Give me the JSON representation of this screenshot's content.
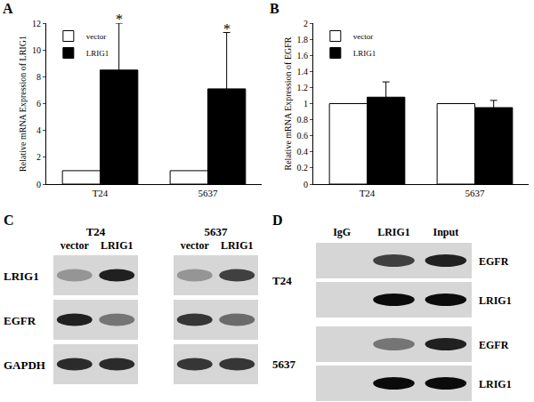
{
  "chart_data": [
    {
      "type": "bar",
      "title": "A",
      "y_label": "Relative mRNA Expression of LRIG1",
      "categories": [
        "T24",
        "5637"
      ],
      "series": [
        {
          "name": "vector",
          "color": "#ffffff",
          "values": [
            1,
            1
          ]
        },
        {
          "name": "LRIG1",
          "color": "#000000",
          "values": [
            8.5,
            7.1
          ],
          "error": [
            3.5,
            4.2
          ]
        }
      ],
      "ylim": [
        0,
        12
      ],
      "yticks": [
        0,
        2,
        4,
        6,
        8,
        10,
        12
      ],
      "grid": false,
      "legend": "top-left",
      "annotations": [
        {
          "category": "T24",
          "series": "LRIG1",
          "text": "*"
        },
        {
          "category": "5637",
          "series": "LRIG1",
          "text": "*"
        }
      ]
    },
    {
      "type": "bar",
      "title": "B",
      "y_label": "Relative mRNA Expression of EGFR",
      "categories": [
        "T24",
        "5637"
      ],
      "series": [
        {
          "name": "vector",
          "color": "#ffffff",
          "values": [
            1,
            1
          ]
        },
        {
          "name": "LRIG1",
          "color": "#000000",
          "values": [
            1.08,
            0.95
          ],
          "error": [
            0.19,
            0.09
          ]
        }
      ],
      "ylim": [
        0,
        2
      ],
      "yticks": [
        0,
        0.2,
        0.4,
        0.6,
        0.8,
        1,
        1.2,
        1.4,
        1.6,
        1.8,
        2
      ],
      "grid": false,
      "legend": "top-left"
    }
  ],
  "blots": [
    {
      "panel": "C",
      "row_labels": [
        "LRIG1",
        "EGFR",
        "GAPDH"
      ],
      "groups": [
        {
          "name": "T24",
          "lanes": [
            "vector",
            "LRIG1"
          ],
          "intensity": [
            [
              0.3,
              0.85
            ],
            [
              0.85,
              0.45
            ],
            [
              0.8,
              0.8
            ]
          ]
        },
        {
          "name": "5637",
          "lanes": [
            "vector",
            "LRIG1"
          ],
          "intensity": [
            [
              0.3,
              0.7
            ],
            [
              0.75,
              0.5
            ],
            [
              0.75,
              0.75
            ]
          ]
        }
      ]
    },
    {
      "panel": "D",
      "lanes": [
        "IgG",
        "LRIG1",
        "Input"
      ],
      "groups": [
        {
          "name": "T24",
          "rows": [
            {
              "label": "EGFR",
              "intensity": [
                0,
                0.7,
                0.85
              ]
            },
            {
              "label": "LRIG1",
              "intensity": [
                0,
                0.95,
                0.95
              ]
            }
          ]
        },
        {
          "name": "5637",
          "rows": [
            {
              "label": "EGFR",
              "intensity": [
                0,
                0.45,
                0.85
              ]
            },
            {
              "label": "LRIG1",
              "intensity": [
                0,
                0.95,
                0.95
              ]
            }
          ]
        }
      ]
    }
  ]
}
